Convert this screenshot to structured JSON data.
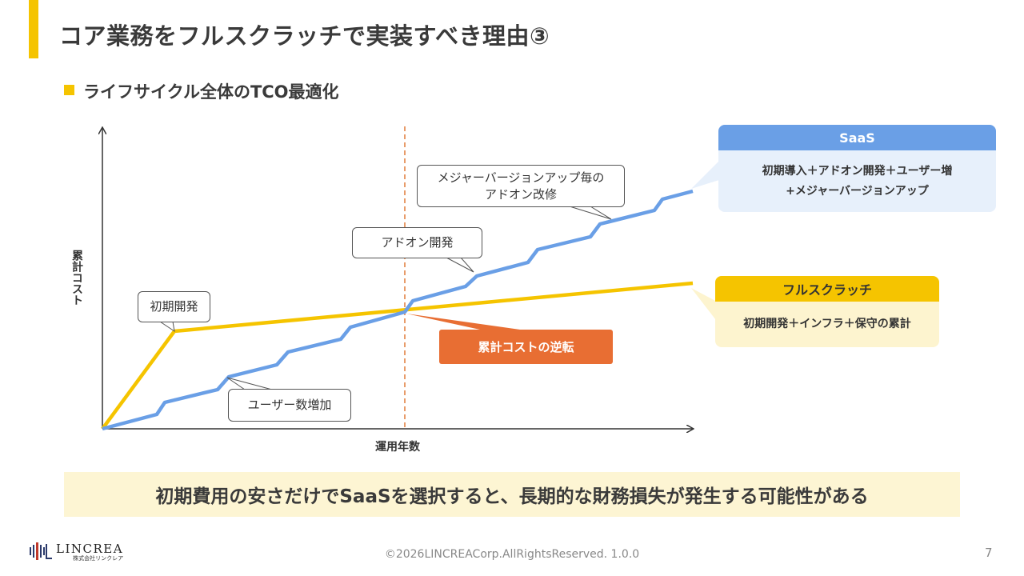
{
  "slide": {
    "title": "コア業務をフルスクラッチで実装すべき理由③",
    "subtitle": "ライフサイクル全体のTCO最適化",
    "page_number": "7",
    "copyright": "©2026LINCREACorp.AllRightsReserved. 1.0.0",
    "logo": {
      "name": "LINCREA",
      "sub": "株式会社リンクレア"
    },
    "conclusion": "初期費用の安さだけでSaaSを選択すると、長期的な財務損失が発生する可能性がある"
  },
  "diagram": {
    "y_axis_label": "累計コスト",
    "x_axis_label": "運用年数",
    "callouts": {
      "initial_dev": "初期開発",
      "user_growth": "ユーザー数増加",
      "addon_dev": "アドオン開発",
      "major_upgrade_line1": "メジャーバージョンアップ毎の",
      "major_upgrade_line2": "アドオン改修"
    },
    "reversal_label": "累計コストの逆転",
    "saas_panel": {
      "title": "SaaS",
      "line1": "初期導入＋アドオン開発＋ユーザー増",
      "line2": "+メジャーバージョンアップ"
    },
    "fullscratch_panel": {
      "title": "フルスクラッチ",
      "line1": "初期開発＋インフラ＋保守の累計"
    },
    "colors": {
      "saas": "#6A9FE6",
      "fullscratch": "#F5C400",
      "reversal": "#E86E33",
      "accent": "#F5C400"
    }
  }
}
